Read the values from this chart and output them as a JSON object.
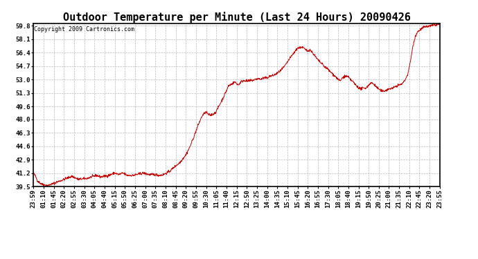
{
  "title": "Outdoor Temperature per Minute (Last 24 Hours) 20090426",
  "copyright_text": "Copyright 2009 Cartronics.com",
  "line_color": "#cc0000",
  "background_color": "#ffffff",
  "grid_color": "#bbbbbb",
  "border_color": "#000000",
  "yticks": [
    39.5,
    41.2,
    42.9,
    44.6,
    46.3,
    48.0,
    49.6,
    51.3,
    53.0,
    54.7,
    56.4,
    58.1,
    59.8
  ],
  "ylim": [
    39.5,
    59.8
  ],
  "xtick_labels": [
    "23:59",
    "01:10",
    "01:45",
    "02:20",
    "02:55",
    "03:30",
    "04:05",
    "04:40",
    "05:15",
    "05:50",
    "06:25",
    "07:00",
    "07:35",
    "08:10",
    "08:45",
    "09:20",
    "09:55",
    "10:30",
    "11:05",
    "11:40",
    "12:15",
    "12:50",
    "13:25",
    "14:00",
    "14:35",
    "15:10",
    "15:45",
    "16:20",
    "16:55",
    "17:30",
    "18:05",
    "18:40",
    "19:15",
    "19:50",
    "20:25",
    "21:00",
    "21:35",
    "22:10",
    "22:45",
    "23:20",
    "23:55"
  ],
  "title_fontsize": 11,
  "tick_fontsize": 6.5,
  "copyright_fontsize": 6,
  "keypoints": [
    [
      0.0,
      41.2
    ],
    [
      0.005,
      40.8
    ],
    [
      0.01,
      40.2
    ],
    [
      0.02,
      39.8
    ],
    [
      0.035,
      39.6
    ],
    [
      0.06,
      40.1
    ],
    [
      0.08,
      40.5
    ],
    [
      0.095,
      40.8
    ],
    [
      0.11,
      40.4
    ],
    [
      0.13,
      40.5
    ],
    [
      0.155,
      40.9
    ],
    [
      0.165,
      40.7
    ],
    [
      0.185,
      40.9
    ],
    [
      0.2,
      41.2
    ],
    [
      0.21,
      41.0
    ],
    [
      0.22,
      41.2
    ],
    [
      0.23,
      40.9
    ],
    [
      0.245,
      40.9
    ],
    [
      0.27,
      41.2
    ],
    [
      0.285,
      41.0
    ],
    [
      0.3,
      41.0
    ],
    [
      0.31,
      40.9
    ],
    [
      0.32,
      41.0
    ],
    [
      0.335,
      41.4
    ],
    [
      0.345,
      41.9
    ],
    [
      0.36,
      42.5
    ],
    [
      0.375,
      43.5
    ],
    [
      0.385,
      44.5
    ],
    [
      0.395,
      45.8
    ],
    [
      0.405,
      47.2
    ],
    [
      0.415,
      48.4
    ],
    [
      0.42,
      48.7
    ],
    [
      0.425,
      48.9
    ],
    [
      0.43,
      48.6
    ],
    [
      0.435,
      48.5
    ],
    [
      0.44,
      48.6
    ],
    [
      0.445,
      48.7
    ],
    [
      0.45,
      49.0
    ],
    [
      0.455,
      49.5
    ],
    [
      0.465,
      50.5
    ],
    [
      0.475,
      51.6
    ],
    [
      0.48,
      52.2
    ],
    [
      0.49,
      52.5
    ],
    [
      0.495,
      52.7
    ],
    [
      0.5,
      52.5
    ],
    [
      0.505,
      52.3
    ],
    [
      0.51,
      52.7
    ],
    [
      0.515,
      52.8
    ],
    [
      0.52,
      52.9
    ],
    [
      0.525,
      52.8
    ],
    [
      0.53,
      52.8
    ],
    [
      0.535,
      52.9
    ],
    [
      0.54,
      52.9
    ],
    [
      0.545,
      53.0
    ],
    [
      0.55,
      53.1
    ],
    [
      0.555,
      53.1
    ],
    [
      0.56,
      53.0
    ],
    [
      0.565,
      53.2
    ],
    [
      0.57,
      53.2
    ],
    [
      0.575,
      53.2
    ],
    [
      0.58,
      53.4
    ],
    [
      0.59,
      53.5
    ],
    [
      0.6,
      53.8
    ],
    [
      0.61,
      54.2
    ],
    [
      0.62,
      54.8
    ],
    [
      0.63,
      55.6
    ],
    [
      0.64,
      56.3
    ],
    [
      0.645,
      56.6
    ],
    [
      0.65,
      57.0
    ],
    [
      0.655,
      57.0
    ],
    [
      0.66,
      57.1
    ],
    [
      0.665,
      57.0
    ],
    [
      0.668,
      56.8
    ],
    [
      0.672,
      56.7
    ],
    [
      0.675,
      56.6
    ],
    [
      0.68,
      56.8
    ],
    [
      0.685,
      56.5
    ],
    [
      0.69,
      56.2
    ],
    [
      0.695,
      55.8
    ],
    [
      0.7,
      55.5
    ],
    [
      0.705,
      55.2
    ],
    [
      0.71,
      55.0
    ],
    [
      0.715,
      54.7
    ],
    [
      0.72,
      54.5
    ],
    [
      0.725,
      54.3
    ],
    [
      0.73,
      54.0
    ],
    [
      0.735,
      53.8
    ],
    [
      0.74,
      53.5
    ],
    [
      0.745,
      53.3
    ],
    [
      0.75,
      53.0
    ],
    [
      0.755,
      52.8
    ],
    [
      0.76,
      53.2
    ],
    [
      0.765,
      53.4
    ],
    [
      0.77,
      53.4
    ],
    [
      0.775,
      53.3
    ],
    [
      0.78,
      53.0
    ],
    [
      0.785,
      52.8
    ],
    [
      0.79,
      52.5
    ],
    [
      0.795,
      52.2
    ],
    [
      0.8,
      52.0
    ],
    [
      0.805,
      51.8
    ],
    [
      0.81,
      51.9
    ],
    [
      0.815,
      51.9
    ],
    [
      0.82,
      52.0
    ],
    [
      0.825,
      52.3
    ],
    [
      0.83,
      52.6
    ],
    [
      0.835,
      52.5
    ],
    [
      0.84,
      52.3
    ],
    [
      0.845,
      52.0
    ],
    [
      0.85,
      51.8
    ],
    [
      0.855,
      51.6
    ],
    [
      0.86,
      51.5
    ],
    [
      0.865,
      51.6
    ],
    [
      0.87,
      51.7
    ],
    [
      0.875,
      51.8
    ],
    [
      0.88,
      51.9
    ],
    [
      0.885,
      51.9
    ],
    [
      0.89,
      52.1
    ],
    [
      0.895,
      52.2
    ],
    [
      0.9,
      52.3
    ],
    [
      0.905,
      52.4
    ],
    [
      0.91,
      52.6
    ],
    [
      0.915,
      53.0
    ],
    [
      0.92,
      53.5
    ],
    [
      0.925,
      54.5
    ],
    [
      0.93,
      56.0
    ],
    [
      0.935,
      57.5
    ],
    [
      0.94,
      58.5
    ],
    [
      0.945,
      59.0
    ],
    [
      0.95,
      59.2
    ],
    [
      0.955,
      59.4
    ],
    [
      0.96,
      59.6
    ],
    [
      0.97,
      59.7
    ],
    [
      0.98,
      59.8
    ],
    [
      0.99,
      59.9
    ],
    [
      1.0,
      60.0
    ]
  ]
}
